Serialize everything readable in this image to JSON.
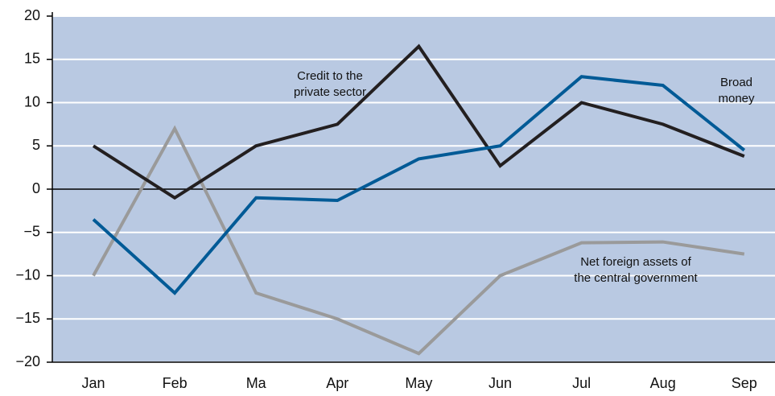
{
  "chart_data": {
    "type": "line",
    "categories": [
      "Jan",
      "Feb",
      "Ma",
      "Apr",
      "May",
      "Jun",
      "Jul",
      "Aug",
      "Sep"
    ],
    "ylim": [
      -20,
      20
    ],
    "yticks": [
      {
        "value": -20,
        "label": "−20"
      },
      {
        "value": -15,
        "label": "−15"
      },
      {
        "value": -10,
        "label": "−10"
      },
      {
        "value": -5,
        "label": "−5"
      },
      0,
      5,
      10,
      15,
      20
    ],
    "grid": true,
    "background": "#b9c9e2",
    "series": [
      {
        "label": [
          "Net foreign assets of",
          "the central government"
        ],
        "color": "#9a9a9a",
        "values": [
          -10,
          7,
          -12,
          -15,
          -19,
          -10,
          -6.2,
          -6.1,
          -7.5
        ]
      },
      {
        "label": [
          "Credit to the",
          "private sector"
        ],
        "color": "#231f20",
        "values": [
          5,
          -1,
          5,
          7.5,
          16.5,
          2.7,
          10,
          7.5,
          3.8
        ]
      },
      {
        "label": [
          "Broad",
          "money"
        ],
        "color": "#005a96",
        "values": [
          -3.5,
          -12,
          -1,
          -1.3,
          3.5,
          5,
          13,
          12,
          4.5
        ]
      }
    ]
  }
}
